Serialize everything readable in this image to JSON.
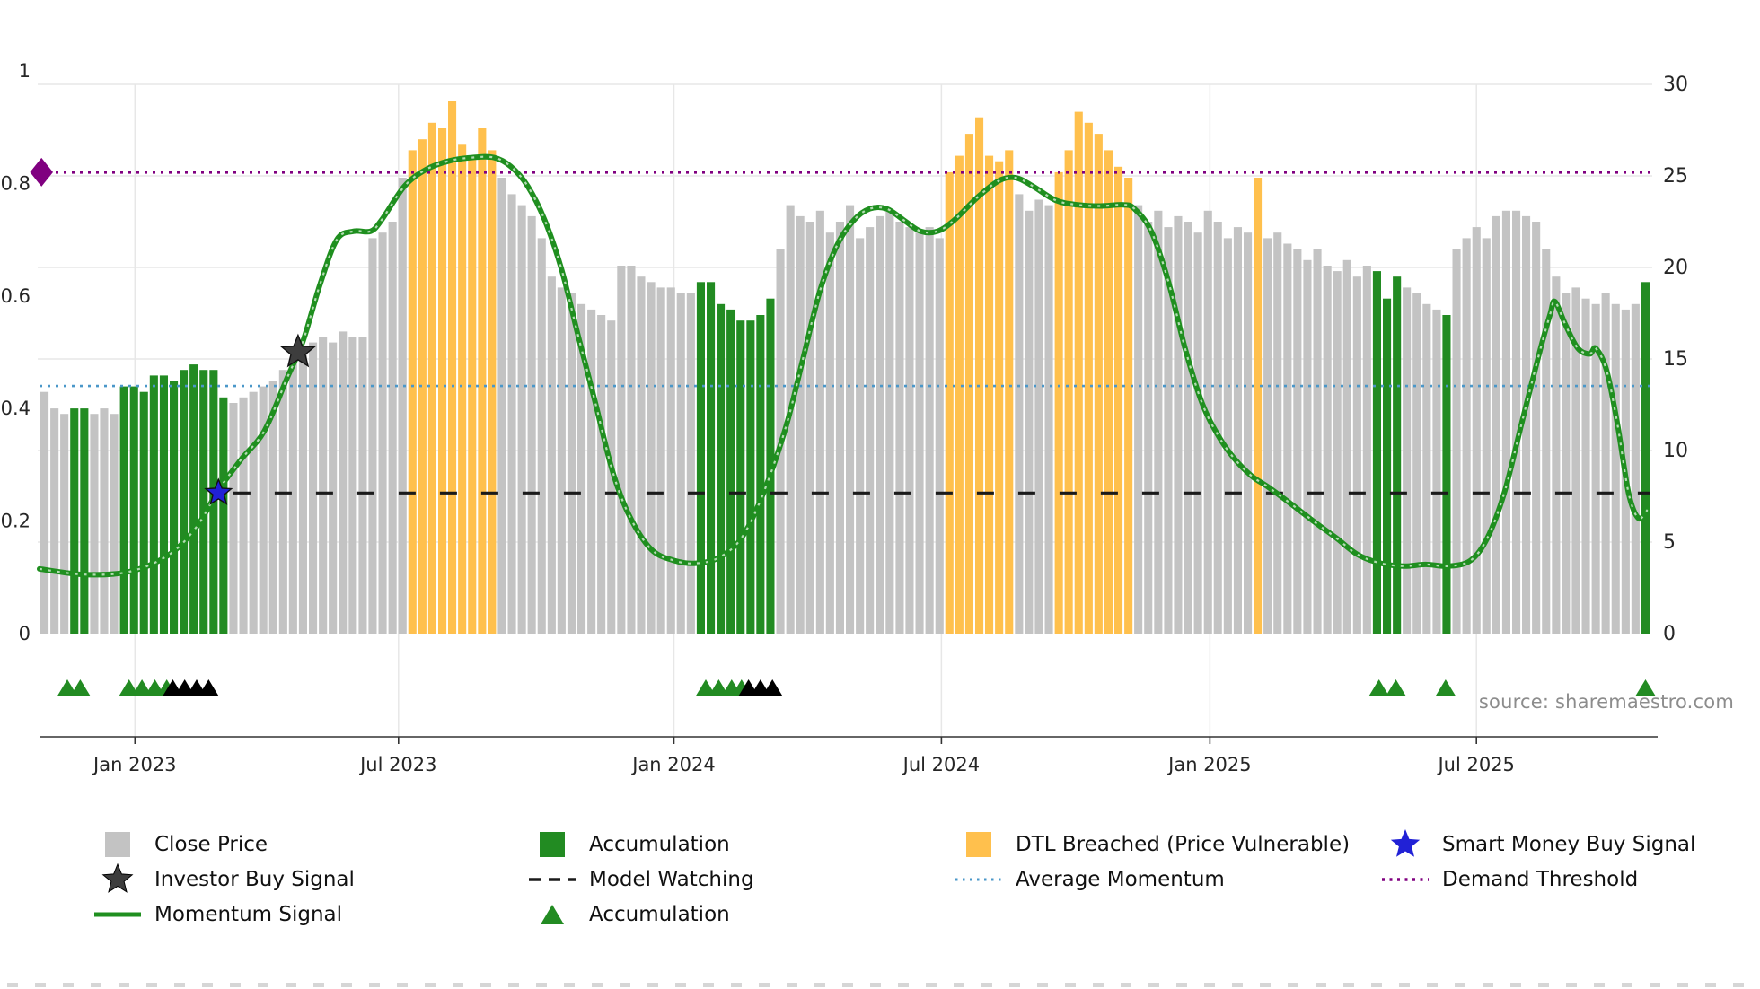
{
  "source": "source: sharemaestro.com",
  "colors": {
    "close_price": "#c3c3c3",
    "accumulation": "#228b22",
    "dtl_breached": "#ffc04d",
    "momentum_signal": "#1f8f1f",
    "momentum_hatch": "#d8efd8",
    "average_momentum": "#4a97c9",
    "demand_threshold": "#800080",
    "model_watching": "#1a1a1a",
    "smart_money_star": "#2121d6",
    "investor_star": "#3d3d3d",
    "triangle_black": "#000000",
    "grid": "#e7e7e7",
    "axis_line": "#333333",
    "axis_text": "#262626",
    "source_text": "#8c8c8c"
  },
  "legend": {
    "items": [
      {
        "label": "Close Price"
      },
      {
        "label": "Accumulation"
      },
      {
        "label": "DTL Breached (Price Vulnerable)"
      },
      {
        "label": "Smart Money Buy Signal"
      },
      {
        "label": "Investor Buy Signal"
      },
      {
        "label": "Model Watching"
      },
      {
        "label": "Average Momentum"
      },
      {
        "label": "Demand Threshold"
      },
      {
        "label": "Momentum Signal"
      },
      {
        "label": "Accumulation"
      }
    ]
  },
  "chart_data": {
    "type": "bar+line",
    "x_axis": {
      "ticks": [
        {
          "label": "Jan 2023",
          "i": 9.6
        },
        {
          "label": "Jul 2023",
          "i": 36.1
        },
        {
          "label": "Jan 2024",
          "i": 63.8
        },
        {
          "label": "Jul 2024",
          "i": 90.7
        },
        {
          "label": "Jan 2025",
          "i": 117.7
        },
        {
          "label": "Jul 2025",
          "i": 144.5
        }
      ]
    },
    "left_axis": {
      "min": 0,
      "max": 1,
      "ticks": [
        {
          "v": 1,
          "label": "1"
        },
        {
          "v": 0.8,
          "label": "0.8"
        },
        {
          "v": 0.6,
          "label": "0.6"
        },
        {
          "v": 0.4,
          "label": "0.4"
        },
        {
          "v": 0.2,
          "label": "0.2"
        },
        {
          "v": 0,
          "label": "0"
        }
      ]
    },
    "right_axis": {
      "min": 0,
      "max": 30,
      "ticks": [
        {
          "v": 30,
          "label": "30"
        },
        {
          "v": 25,
          "label": "25"
        },
        {
          "v": 20,
          "label": "20"
        },
        {
          "v": 15,
          "label": "15"
        },
        {
          "v": 10,
          "label": "10"
        },
        {
          "v": 5,
          "label": "5"
        },
        {
          "v": 0,
          "label": "0"
        }
      ]
    },
    "close_price": {
      "name": "Close Price",
      "axis": "right",
      "state_key": {
        "s": "close",
        "g": "accumulation",
        "o": "dtl_breached"
      },
      "state_runs": [
        [
          "s",
          3
        ],
        [
          "g",
          2
        ],
        [
          "s",
          3
        ],
        [
          "g",
          11
        ],
        [
          "s",
          18
        ],
        [
          "o",
          9
        ],
        [
          "s",
          20
        ],
        [
          "g",
          8
        ],
        [
          "s",
          17
        ],
        [
          "o",
          7
        ],
        [
          "s",
          4
        ],
        [
          "o",
          8
        ],
        [
          "s",
          12
        ],
        [
          "o",
          1
        ],
        [
          "s",
          11
        ],
        [
          "g",
          3
        ],
        [
          "s",
          4
        ],
        [
          "g",
          1
        ],
        [
          "s",
          19
        ],
        [
          "g",
          1
        ]
      ],
      "values": [
        13.2,
        12.3,
        12.0,
        12.3,
        12.3,
        12.0,
        12.3,
        12.0,
        13.5,
        13.5,
        13.2,
        14.1,
        14.1,
        13.8,
        14.4,
        14.7,
        14.4,
        14.4,
        12.9,
        12.6,
        12.9,
        13.2,
        13.5,
        13.8,
        14.4,
        15.0,
        15.6,
        15.9,
        16.2,
        15.9,
        16.5,
        16.2,
        16.2,
        21.6,
        21.9,
        22.5,
        24.9,
        26.4,
        27.0,
        27.9,
        27.6,
        29.1,
        26.7,
        26.1,
        27.6,
        26.4,
        24.9,
        24.0,
        23.4,
        22.8,
        21.6,
        19.5,
        18.9,
        18.6,
        18.0,
        17.7,
        17.4,
        17.1,
        20.1,
        20.1,
        19.5,
        19.2,
        18.9,
        18.9,
        18.6,
        18.6,
        19.2,
        19.2,
        18.0,
        17.7,
        17.1,
        17.1,
        17.4,
        18.3,
        21.0,
        23.4,
        22.8,
        22.5,
        23.1,
        21.9,
        22.5,
        23.4,
        21.6,
        22.2,
        22.8,
        23.1,
        22.5,
        22.2,
        21.9,
        22.2,
        21.6,
        25.2,
        26.1,
        27.3,
        28.2,
        26.1,
        25.8,
        26.4,
        24.0,
        23.1,
        23.7,
        23.4,
        25.2,
        26.4,
        28.5,
        27.9,
        27.3,
        26.4,
        25.5,
        24.9,
        23.4,
        22.5,
        23.1,
        22.2,
        22.8,
        22.5,
        21.9,
        23.1,
        22.5,
        21.6,
        22.2,
        21.9,
        24.9,
        21.6,
        21.9,
        21.3,
        21.0,
        20.4,
        21.0,
        20.1,
        19.8,
        20.4,
        19.5,
        20.1,
        19.8,
        18.3,
        19.5,
        18.9,
        18.6,
        18.0,
        17.7,
        17.4,
        21.0,
        21.6,
        22.2,
        21.6,
        22.8,
        23.1,
        23.1,
        22.8,
        22.5,
        21.0,
        19.5,
        18.6,
        18.9,
        18.3,
        18.0,
        18.6,
        18.0,
        17.7,
        18.0,
        19.2
      ]
    },
    "momentum_signal": {
      "name": "Momentum Signal",
      "axis": "left",
      "points": [
        [
          0,
          0.115
        ],
        [
          4.5,
          0.105
        ],
        [
          9,
          0.11
        ],
        [
          13,
          0.14
        ],
        [
          15.8,
          0.19
        ],
        [
          18,
          0.255
        ],
        [
          20.3,
          0.31
        ],
        [
          22.6,
          0.36
        ],
        [
          24.8,
          0.45
        ],
        [
          26.5,
          0.52
        ],
        [
          28.2,
          0.62
        ],
        [
          29.9,
          0.7
        ],
        [
          31.6,
          0.715
        ],
        [
          33.3,
          0.715
        ],
        [
          34.4,
          0.735
        ],
        [
          36.7,
          0.795
        ],
        [
          38.9,
          0.825
        ],
        [
          41.2,
          0.84
        ],
        [
          43.5,
          0.846
        ],
        [
          45.7,
          0.846
        ],
        [
          47.4,
          0.83
        ],
        [
          49.1,
          0.795
        ],
        [
          50.8,
          0.735
        ],
        [
          52.5,
          0.647
        ],
        [
          54.2,
          0.527
        ],
        [
          55.9,
          0.41
        ],
        [
          57.6,
          0.29
        ],
        [
          59.3,
          0.21
        ],
        [
          61.5,
          0.15
        ],
        [
          63.8,
          0.13
        ],
        [
          66,
          0.125
        ],
        [
          68.3,
          0.135
        ],
        [
          70.6,
          0.17
        ],
        [
          72.8,
          0.25
        ],
        [
          75.1,
          0.37
        ],
        [
          76.8,
          0.49
        ],
        [
          78.5,
          0.61
        ],
        [
          80.2,
          0.69
        ],
        [
          81.9,
          0.735
        ],
        [
          83.5,
          0.755
        ],
        [
          85.2,
          0.755
        ],
        [
          86.9,
          0.735
        ],
        [
          88.6,
          0.715
        ],
        [
          90.3,
          0.715
        ],
        [
          92,
          0.735
        ],
        [
          94.3,
          0.775
        ],
        [
          96.5,
          0.805
        ],
        [
          98.2,
          0.81
        ],
        [
          99.9,
          0.795
        ],
        [
          102.2,
          0.77
        ],
        [
          104.4,
          0.762
        ],
        [
          106.7,
          0.76
        ],
        [
          109,
          0.762
        ],
        [
          110.1,
          0.755
        ],
        [
          111.8,
          0.715
        ],
        [
          113.5,
          0.627
        ],
        [
          115.2,
          0.507
        ],
        [
          116.9,
          0.41
        ],
        [
          118.6,
          0.35
        ],
        [
          120.2,
          0.31
        ],
        [
          121.9,
          0.28
        ],
        [
          123.6,
          0.26
        ],
        [
          125.9,
          0.23
        ],
        [
          128.1,
          0.2
        ],
        [
          130.4,
          0.17
        ],
        [
          132.6,
          0.14
        ],
        [
          134.9,
          0.125
        ],
        [
          137.2,
          0.12
        ],
        [
          139.4,
          0.123
        ],
        [
          141.7,
          0.12
        ],
        [
          143.9,
          0.13
        ],
        [
          145.6,
          0.17
        ],
        [
          147.3,
          0.25
        ],
        [
          149,
          0.37
        ],
        [
          150.7,
          0.49
        ],
        [
          151.9,
          0.567
        ],
        [
          152.4,
          0.59
        ],
        [
          153.5,
          0.547
        ],
        [
          154.7,
          0.507
        ],
        [
          155.9,
          0.497
        ],
        [
          156.5,
          0.507
        ],
        [
          157.6,
          0.467
        ],
        [
          158.7,
          0.37
        ],
        [
          159.8,
          0.25
        ],
        [
          160.8,
          0.205
        ],
        [
          161.7,
          0.22
        ]
      ]
    },
    "reference_lines": [
      {
        "name": "Demand Threshold",
        "axis": "left",
        "value": 0.82,
        "style": "dotted",
        "width": 3.5,
        "from_i": 0,
        "color_key": "demand_threshold"
      },
      {
        "name": "Average Momentum",
        "axis": "left",
        "value": 0.44,
        "style": "dotted",
        "width": 2.6,
        "from_i": 0,
        "color_key": "average_momentum"
      },
      {
        "name": "Model Watching",
        "axis": "left",
        "value": 0.25,
        "style": "dashed",
        "width": 3.2,
        "from_i": 19.5,
        "color_key": "model_watching"
      }
    ],
    "markers": [
      {
        "name": "Investor Buy Signal",
        "shape": "star",
        "i": 26,
        "value": 0.5,
        "size": 19,
        "color_key": "investor_star"
      },
      {
        "name": "Smart Money Buy Signal",
        "shape": "star",
        "i": 18,
        "value": 0.25,
        "size": 15,
        "color_key": "smart_money_star"
      },
      {
        "name": "Demand Threshold Marker",
        "shape": "diamond",
        "i": 0.2,
        "value": 0.82,
        "size": 16,
        "color_key": "demand_threshold"
      }
    ],
    "accumulation_markers": [
      {
        "i": 2.8,
        "color": "green"
      },
      {
        "i": 4.1,
        "color": "green"
      },
      {
        "i": 9.0,
        "color": "green"
      },
      {
        "i": 10.3,
        "color": "green"
      },
      {
        "i": 11.6,
        "color": "green"
      },
      {
        "i": 12.8,
        "color": "green"
      },
      {
        "i": 13.4,
        "color": "black"
      },
      {
        "i": 14.6,
        "color": "black"
      },
      {
        "i": 15.8,
        "color": "black"
      },
      {
        "i": 17.0,
        "color": "black"
      },
      {
        "i": 67.0,
        "color": "green"
      },
      {
        "i": 68.3,
        "color": "green"
      },
      {
        "i": 69.6,
        "color": "green"
      },
      {
        "i": 70.6,
        "color": "green"
      },
      {
        "i": 71.3,
        "color": "black"
      },
      {
        "i": 72.5,
        "color": "black"
      },
      {
        "i": 73.7,
        "color": "black"
      },
      {
        "i": 134.7,
        "color": "green"
      },
      {
        "i": 136.4,
        "color": "green"
      },
      {
        "i": 141.4,
        "color": "green"
      },
      {
        "i": 161.5,
        "color": "green"
      }
    ]
  }
}
